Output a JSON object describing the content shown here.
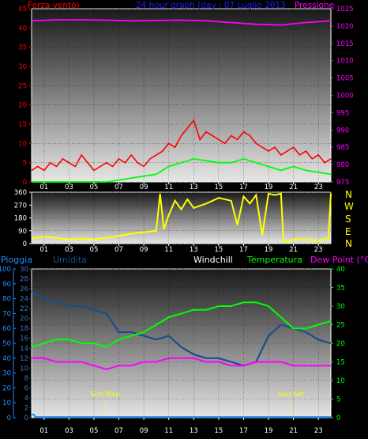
{
  "wind_panel": {
    "title_left": "Forza vento)",
    "title_center": "24 hour graph (day : 07 Luglio 2013",
    "title_right": "Pressione"
  },
  "direction_panel": {
    "compass_labels": [
      "N",
      "W",
      "S",
      "E",
      "N"
    ]
  },
  "lower_panel": {
    "labels": {
      "rain": "Pioggia",
      "humidity": "Umidita",
      "windchill": "Windchill",
      "temperature": "Temperatura",
      "dewpoint": "Dew Point (°C)"
    },
    "annotations": {
      "sunrise": "Sun Rise",
      "sunset": "Sun Set"
    }
  },
  "hour_labels": [
    "01",
    "03",
    "05",
    "07",
    "09",
    "11",
    "13",
    "15",
    "17",
    "19",
    "21",
    "23"
  ],
  "colors": {
    "wind": "#ff0000",
    "wind_avg": "#00ff00",
    "pressure": "#ff00ff",
    "direction": "#ffff00",
    "rain": "#1e90ff",
    "humidity": "#1a4f8c",
    "windchill": "#ffffff",
    "temperature": "#00ff00",
    "dewpoint": "#ff00ff",
    "annotation": "#ffff00"
  },
  "chart_data": [
    {
      "type": "line",
      "panel": "wind",
      "xlim": [
        0,
        24
      ],
      "ylim_left": [
        0,
        45
      ],
      "yticks_left": [
        0,
        5,
        10,
        15,
        20,
        25,
        30,
        35,
        40,
        45
      ],
      "ylim_right": [
        975,
        1025
      ],
      "yticks_right": [
        975,
        980,
        985,
        990,
        995,
        1000,
        1005,
        1010,
        1015,
        1020,
        1025
      ],
      "series": [
        {
          "name": "Forza vento)",
          "axis": "left",
          "x": [
            0,
            0.5,
            1,
            1.5,
            2,
            2.5,
            3,
            3.5,
            4,
            4.5,
            5,
            5.5,
            6,
            6.5,
            7,
            7.5,
            8,
            8.5,
            9,
            9.5,
            10,
            10.5,
            11,
            11.5,
            12,
            12.5,
            13,
            13.5,
            14,
            14.5,
            15,
            15.5,
            16,
            16.5,
            17,
            17.5,
            18,
            18.5,
            19,
            19.5,
            20,
            20.5,
            21,
            21.5,
            22,
            22.5,
            23,
            23.5,
            24
          ],
          "y": [
            3,
            4,
            3,
            5,
            4,
            6,
            5,
            4,
            7,
            5,
            3,
            4,
            5,
            4,
            6,
            5,
            7,
            5,
            4,
            6,
            7,
            8,
            10,
            9,
            12,
            14,
            16,
            11,
            13,
            12,
            11,
            10,
            12,
            11,
            13,
            12,
            10,
            9,
            8,
            9,
            7,
            8,
            9,
            7,
            8,
            6,
            7,
            5,
            6
          ]
        },
        {
          "name": "Forza vento) (media)",
          "axis": "left",
          "x": [
            0,
            1,
            2,
            3,
            4,
            5,
            6,
            7,
            8,
            9,
            10,
            11,
            12,
            13,
            14,
            15,
            16,
            17,
            18,
            19,
            20,
            21,
            22,
            23,
            24
          ],
          "y": [
            0,
            0,
            0,
            0,
            0,
            0,
            0,
            0.5,
            1,
            1.5,
            2,
            4,
            5,
            6,
            5.5,
            5,
            5,
            6,
            5,
            4,
            3,
            4,
            3,
            2.5,
            2
          ]
        },
        {
          "name": "Pressione",
          "axis": "right",
          "x": [
            0,
            2,
            4,
            6,
            8,
            10,
            12,
            14,
            16,
            18,
            20,
            22,
            24
          ],
          "y": [
            1021.5,
            1021.8,
            1021.8,
            1021.7,
            1021.5,
            1021.6,
            1021.7,
            1021.5,
            1021,
            1020.5,
            1020.3,
            1021,
            1021.5
          ]
        }
      ]
    },
    {
      "type": "line",
      "panel": "direction",
      "xlim": [
        0,
        24
      ],
      "ylim": [
        0,
        360
      ],
      "yticks": [
        0,
        90,
        180,
        270,
        360
      ],
      "series": [
        {
          "name": "direction",
          "x": [
            0,
            1,
            2,
            3,
            4,
            5,
            6,
            7,
            8,
            9,
            10,
            10.3,
            10.6,
            11,
            11.5,
            12,
            12.5,
            13,
            14,
            15,
            16,
            16.5,
            17,
            17.5,
            18,
            18.5,
            19,
            19.5,
            20,
            20.2,
            21,
            22,
            23,
            23.8,
            24
          ],
          "y": [
            35,
            50,
            40,
            30,
            35,
            30,
            40,
            55,
            70,
            80,
            90,
            350,
            100,
            200,
            300,
            240,
            310,
            250,
            280,
            320,
            300,
            130,
            330,
            280,
            340,
            60,
            350,
            340,
            350,
            10,
            30,
            30,
            20,
            40,
            350
          ]
        }
      ]
    },
    {
      "type": "line",
      "panel": "lower",
      "xlim": [
        0,
        24
      ],
      "ylim_rain": [
        0,
        100
      ],
      "yticks_rain": [
        0,
        10,
        20,
        30,
        40,
        50,
        60,
        70,
        80,
        90,
        100
      ],
      "ylim_humidity": [
        0,
        30
      ],
      "yticks_humidity": [
        0,
        2,
        4,
        6,
        8,
        10,
        12,
        14,
        16,
        18,
        20,
        22,
        24,
        26,
        28,
        30
      ],
      "ylim_temperature": [
        0,
        40
      ],
      "yticks_temperature": [
        0,
        5,
        10,
        15,
        20,
        25,
        30,
        35,
        40
      ],
      "sun_rise_hour": 5.9,
      "sun_set_hour": 20.8,
      "series": [
        {
          "name": "Pioggia",
          "axis": "rain",
          "x": [
            0,
            0.2,
            0.3,
            24
          ],
          "y": [
            2,
            2,
            0.5,
            0.5
          ]
        },
        {
          "name": "Umidita",
          "axis": "temperature",
          "x": [
            0,
            1,
            2,
            3,
            4,
            5,
            6,
            7,
            8,
            9,
            10,
            11,
            12,
            13,
            14,
            15,
            16,
            17,
            18,
            19,
            20,
            21,
            22,
            23,
            24
          ],
          "y": [
            34,
            32,
            31,
            30,
            30,
            29,
            28,
            23,
            23,
            22,
            21,
            22,
            19,
            17,
            16,
            16,
            15,
            14,
            15,
            22,
            25,
            24,
            23,
            21,
            20
          ]
        },
        {
          "name": "Temperatura",
          "axis": "temperature",
          "x": [
            0,
            1,
            2,
            3,
            4,
            5,
            6,
            7,
            8,
            9,
            10,
            11,
            12,
            13,
            14,
            15,
            16,
            17,
            18,
            19,
            20,
            21,
            22,
            23,
            24
          ],
          "y": [
            19,
            20,
            21,
            21,
            20,
            20,
            19,
            21,
            22,
            23,
            25,
            27,
            28,
            29,
            29,
            30,
            30,
            31,
            31,
            30,
            27,
            24,
            24,
            25,
            26
          ]
        },
        {
          "name": "Dew Point (°C)",
          "axis": "temperature",
          "x": [
            0,
            1,
            2,
            3,
            4,
            5,
            6,
            7,
            8,
            9,
            10,
            11,
            12,
            13,
            14,
            15,
            16,
            17,
            18,
            19,
            20,
            21,
            22,
            23,
            24
          ],
          "y": [
            16,
            16,
            15,
            15,
            15,
            14,
            13,
            14,
            14,
            15,
            15,
            16,
            16,
            16,
            15,
            15,
            14,
            14,
            15,
            15,
            15,
            14,
            14,
            14,
            14
          ]
        }
      ]
    }
  ]
}
